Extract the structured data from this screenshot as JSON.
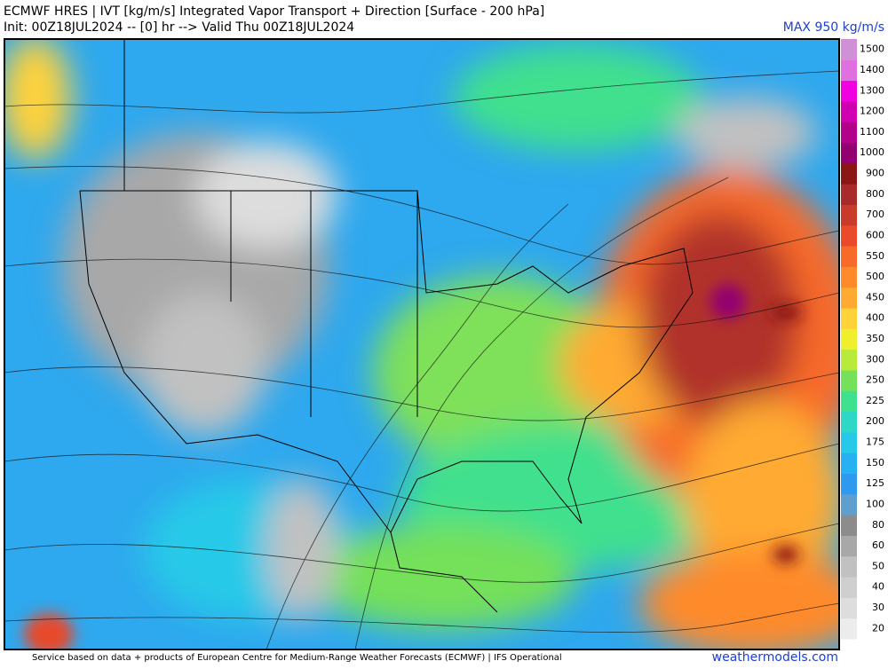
{
  "header": {
    "title": "ECMWF HRES | IVT [kg/m/s] Integrated Vapor Transport + Direction [Surface - 200 hPa]",
    "subtitle": "Init: 00Z18JUL2024 -- [0] hr --> Valid Thu 00Z18JUL2024",
    "max_label": "MAX 950 kg/m/s"
  },
  "colorbar": {
    "levels": [
      20,
      30,
      40,
      50,
      60,
      80,
      100,
      125,
      150,
      175,
      200,
      225,
      250,
      300,
      350,
      400,
      450,
      500,
      550,
      600,
      700,
      800,
      900,
      1000,
      1100,
      1200,
      1300,
      1400,
      1500
    ],
    "colors": [
      "#ececec",
      "#dddddd",
      "#cfcfcf",
      "#c1c1c1",
      "#a8a8a8",
      "#8c8c8c",
      "#5f9fcf",
      "#2d9af0",
      "#26b2f2",
      "#27c9e8",
      "#2fd8c6",
      "#3fe08e",
      "#75e05a",
      "#b8ea3a",
      "#f0ef2e",
      "#ffd23a",
      "#ffaa30",
      "#ff8a2a",
      "#f76a2a",
      "#e84a2a",
      "#c83a2a",
      "#a82a2a",
      "#8a1616",
      "#920072",
      "#b2008c",
      "#d000b2",
      "#f000e0",
      "#e070e0",
      "#cf90d8"
    ]
  },
  "footer": {
    "credit": "Service based on data + products of European Centre for Medium-Range Weather Forecasts (ECMWF) | IFS Operational",
    "site": "weathermodels.com"
  }
}
